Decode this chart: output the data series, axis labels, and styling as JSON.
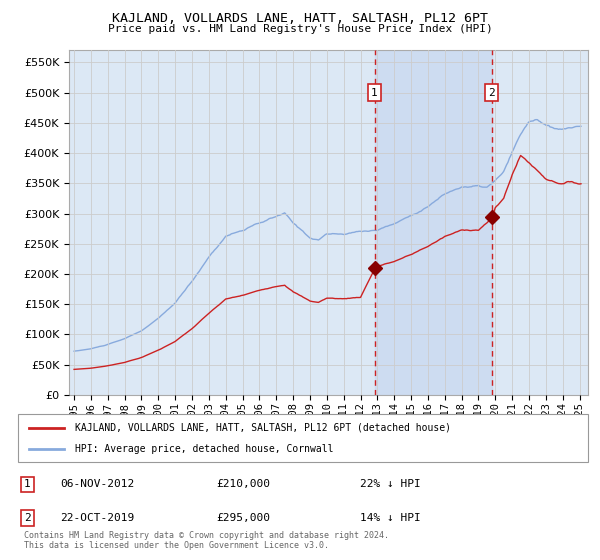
{
  "title": "KAJLAND, VOLLARDS LANE, HATT, SALTASH, PL12 6PT",
  "subtitle": "Price paid vs. HM Land Registry's House Price Index (HPI)",
  "ylim": [
    0,
    570000
  ],
  "background_color": "#ffffff",
  "grid_color": "#cccccc",
  "plot_bg_color": "#dce8f5",
  "shade_color": "#c8d8f0",
  "sale1_date": "06-NOV-2012",
  "sale1_price": 210000,
  "sale1_pct": "22%",
  "sale2_date": "22-OCT-2019",
  "sale2_price": 295000,
  "sale2_pct": "14%",
  "legend_label1": "KAJLAND, VOLLARDS LANE, HATT, SALTASH, PL12 6PT (detached house)",
  "legend_label2": "HPI: Average price, detached house, Cornwall",
  "footnote": "Contains HM Land Registry data © Crown copyright and database right 2024.\nThis data is licensed under the Open Government Licence v3.0.",
  "line1_color": "#cc2222",
  "line2_color": "#88aadd",
  "marker_color": "#880000",
  "vline_color": "#cc2222",
  "sale1_x": 2012.83,
  "sale2_x": 2019.79
}
